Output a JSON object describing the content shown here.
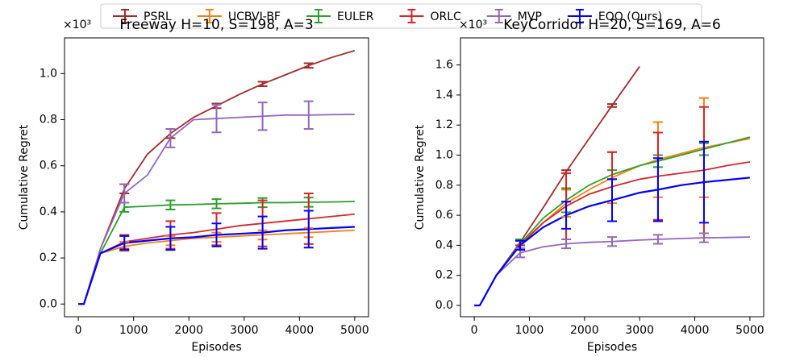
{
  "legend": {
    "entries": [
      {
        "name": "PSRL",
        "color": "#a52a2a"
      },
      {
        "name": "UCBVI-BF",
        "color": "#ff7f0e"
      },
      {
        "name": "EULER",
        "color": "#2ca02c"
      },
      {
        "name": "ORLC",
        "color": "#d62728"
      },
      {
        "name": "MVP",
        "color": "#9467bd"
      },
      {
        "name": "EQO (Ours)",
        "color": "#0000ff"
      }
    ]
  },
  "chart_data": [
    {
      "type": "line",
      "title": "Freeway H=10, S=198, A=3",
      "x_label": "Episodes",
      "y_label": "Cumulative Regret",
      "offset_label": "×10³",
      "x": [
        0,
        100,
        400,
        833,
        1250,
        1667,
        2083,
        2500,
        2917,
        3333,
        3750,
        4167,
        4583,
        5000
      ],
      "xlim": [
        -250,
        5250
      ],
      "xticks": [
        0,
        1000,
        2000,
        3000,
        4000,
        5000
      ],
      "ylim": [
        -0.055,
        1.155
      ],
      "yticks": [
        {
          "value": 0,
          "label": "0.0"
        },
        0.2,
        0.4,
        0.6,
        0.8,
        {
          "value": 1,
          "label": "1.0"
        }
      ],
      "series": [
        {
          "values": [
            0,
            0,
            0.24,
            0.5,
            0.65,
            0.74,
            0.81,
            0.86,
            0.91,
            0.955,
            0.995,
            1.035,
            1.07,
            1.1
          ],
          "errors": [
            null,
            null,
            null,
            0.02,
            null,
            0.02,
            null,
            0.01,
            null,
            0.01,
            null,
            0.01,
            null,
            null
          ]
        },
        {
          "values": [
            0,
            0,
            0.22,
            0.25,
            0.265,
            0.275,
            0.285,
            0.29,
            0.295,
            0.3,
            0.305,
            0.31,
            0.315,
            0.32
          ],
          "errors": [
            null,
            null,
            null,
            0.02,
            null,
            0.02,
            null,
            0.02,
            null,
            0.02,
            null,
            0.02,
            null,
            null
          ]
        },
        {
          "values": [
            0,
            0,
            0.22,
            0.42,
            0.425,
            0.43,
            0.432,
            0.435,
            0.437,
            0.44,
            0.44,
            0.442,
            0.443,
            0.445
          ],
          "errors": [
            null,
            null,
            null,
            0.02,
            null,
            0.02,
            null,
            0.02,
            null,
            0.02,
            null,
            0.02,
            null,
            null
          ]
        },
        {
          "values": [
            0,
            0,
            0.22,
            0.27,
            0.285,
            0.3,
            0.31,
            0.325,
            0.34,
            0.35,
            0.36,
            0.37,
            0.38,
            0.39
          ],
          "errors": [
            null,
            null,
            null,
            0.03,
            null,
            0.06,
            null,
            0.07,
            null,
            0.1,
            null,
            0.11,
            null,
            null
          ]
        },
        {
          "values": [
            0,
            0,
            0.24,
            0.48,
            0.56,
            0.72,
            0.8,
            0.805,
            0.81,
            0.815,
            0.82,
            0.82,
            0.822,
            0.823
          ],
          "errors": [
            null,
            null,
            null,
            0.04,
            null,
            0.04,
            null,
            0.06,
            null,
            0.06,
            null,
            0.06,
            null,
            null
          ]
        },
        {
          "values": [
            0,
            0,
            0.22,
            0.265,
            0.275,
            0.285,
            0.29,
            0.3,
            0.305,
            0.31,
            0.32,
            0.325,
            0.33,
            0.335
          ],
          "errors": [
            null,
            null,
            null,
            0.03,
            null,
            0.05,
            null,
            0.05,
            null,
            0.07,
            null,
            0.08,
            null,
            null
          ]
        }
      ]
    },
    {
      "type": "line",
      "title": "KeyCorridor H=20, S=169, A=6",
      "x_label": "Episodes",
      "y_label": "Cumulative Regret",
      "offset_label": "×10³",
      "x": [
        0,
        100,
        400,
        833,
        1250,
        1667,
        2083,
        2500,
        3000,
        3333,
        3750,
        4167,
        4583,
        5000
      ],
      "xlim": [
        -250,
        5250
      ],
      "xticks": [
        0,
        1000,
        2000,
        3000,
        4000,
        5000
      ],
      "ylim": [
        -0.075,
        1.78
      ],
      "yticks": [
        {
          "value": 0,
          "label": "0.0"
        },
        0.2,
        0.4,
        0.6,
        0.8,
        {
          "value": 1,
          "label": "1.0"
        },
        1.2,
        1.4,
        1.6
      ],
      "series": [
        {
          "values": [
            0,
            0,
            0.2,
            0.42,
            0.65,
            0.89,
            1.11,
            1.33,
            1.59,
            null,
            null,
            null,
            null,
            null
          ],
          "errors": [
            null,
            null,
            null,
            0.02,
            null,
            0.01,
            null,
            0.01,
            null,
            null,
            null,
            null,
            null,
            null
          ]
        },
        {
          "values": [
            0,
            0,
            0.2,
            0.41,
            0.55,
            0.68,
            0.77,
            0.85,
            0.93,
            0.97,
            1.01,
            1.05,
            1.08,
            1.11
          ],
          "errors": [
            null,
            null,
            null,
            0.03,
            null,
            0.09,
            null,
            0.17,
            null,
            0.25,
            null,
            0.33,
            null,
            null
          ]
        },
        {
          "values": [
            0,
            0,
            0.2,
            0.41,
            0.58,
            0.7,
            0.8,
            0.87,
            0.93,
            0.96,
            1.0,
            1.04,
            1.08,
            1.12
          ],
          "errors": [
            null,
            null,
            null,
            0.03,
            null,
            0.08,
            null,
            0.03,
            null,
            0.04,
            null,
            0.04,
            null,
            null
          ]
        },
        {
          "values": [
            0,
            0,
            0.2,
            0.4,
            0.55,
            0.66,
            0.74,
            0.79,
            0.84,
            0.86,
            0.88,
            0.9,
            0.93,
            0.955
          ],
          "errors": [
            null,
            null,
            null,
            0.03,
            null,
            0.22,
            null,
            0.23,
            null,
            0.29,
            null,
            0.42,
            null,
            null
          ]
        },
        {
          "values": [
            0,
            0,
            0.2,
            0.35,
            0.39,
            0.41,
            0.42,
            0.425,
            0.435,
            0.44,
            0.445,
            0.45,
            0.452,
            0.455
          ],
          "errors": [
            null,
            null,
            null,
            0.03,
            null,
            0.03,
            null,
            0.03,
            null,
            0.03,
            null,
            0.03,
            null,
            null
          ]
        },
        {
          "values": [
            0,
            0,
            0.2,
            0.4,
            0.52,
            0.6,
            0.66,
            0.7,
            0.75,
            0.77,
            0.8,
            0.82,
            0.835,
            0.85
          ],
          "errors": [
            null,
            null,
            null,
            0.03,
            null,
            0.09,
            null,
            0.14,
            null,
            0.21,
            null,
            0.27,
            null,
            null
          ]
        }
      ]
    }
  ]
}
